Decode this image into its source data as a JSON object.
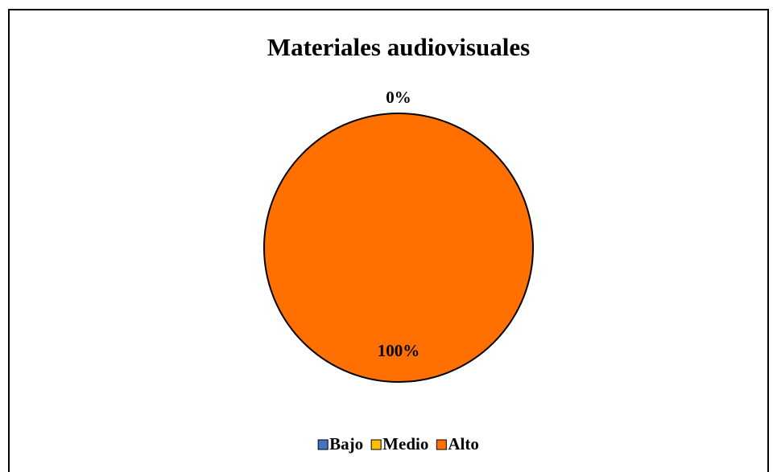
{
  "chart_data": {
    "type": "pie",
    "title": "Materiales audiovisuales",
    "categories": [
      "Bajo",
      "Medio",
      "Alto"
    ],
    "values": [
      0,
      0,
      100
    ],
    "value_labels": [
      "0%",
      null,
      "100%"
    ],
    "colors": [
      "#4472c4",
      "#ffc000",
      "#ff7000"
    ],
    "legend": "bottom"
  }
}
